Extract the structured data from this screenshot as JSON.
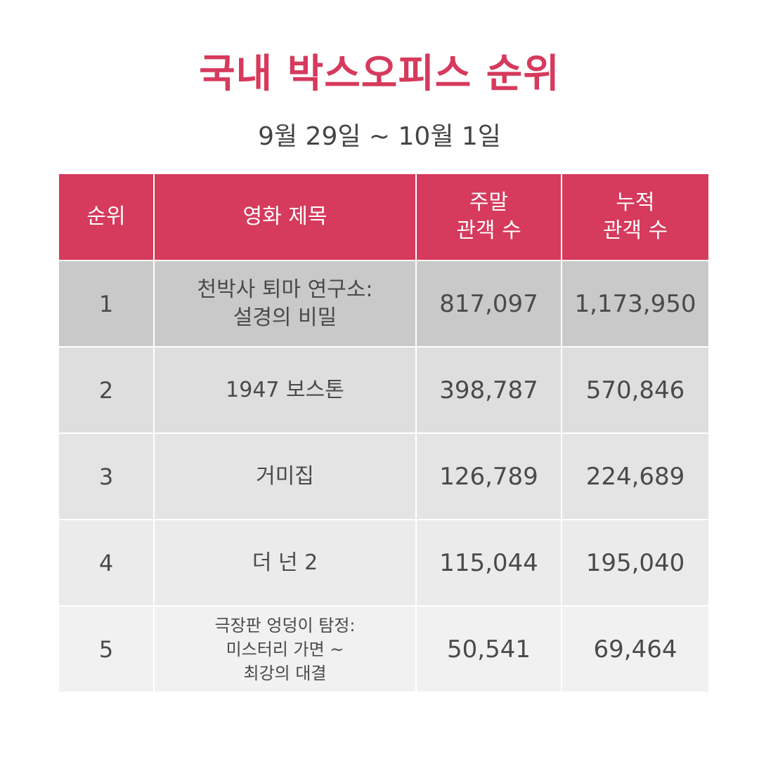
{
  "title": "국내 박스오피스 순위",
  "subtitle": "9월 29일 ~ 10월 1일",
  "table": {
    "headers": {
      "rank": "순위",
      "movie": "영화 제목",
      "weekend_line1": "주말",
      "weekend_line2": "관객 수",
      "total_line1": "누적",
      "total_line2": "관객 수"
    },
    "rows": [
      {
        "rank": "1",
        "title_lines": [
          "천박사 퇴마 연구소:",
          "설경의 비밀",
          ""
        ],
        "weekend": "817,097",
        "total": "1,173,950"
      },
      {
        "rank": "2",
        "title_lines": [
          "1947 보스톤",
          "",
          ""
        ],
        "weekend": "398,787",
        "total": "570,846"
      },
      {
        "rank": "3",
        "title_lines": [
          "거미집",
          "",
          ""
        ],
        "weekend": "126,789",
        "total": "224,689"
      },
      {
        "rank": "4",
        "title_lines": [
          "더 넌 2",
          "",
          ""
        ],
        "weekend": "115,044",
        "total": "195,040"
      },
      {
        "rank": "5",
        "title_lines": [
          "극장판 엉덩이 탐정:",
          "미스터리 가면 ~",
          "최강의 대결"
        ],
        "weekend": "50,541",
        "total": "69,464"
      }
    ]
  },
  "colors": {
    "accent": "#d63a5c",
    "header_text": "#ffffff",
    "body_text": "#4a4a4a"
  }
}
